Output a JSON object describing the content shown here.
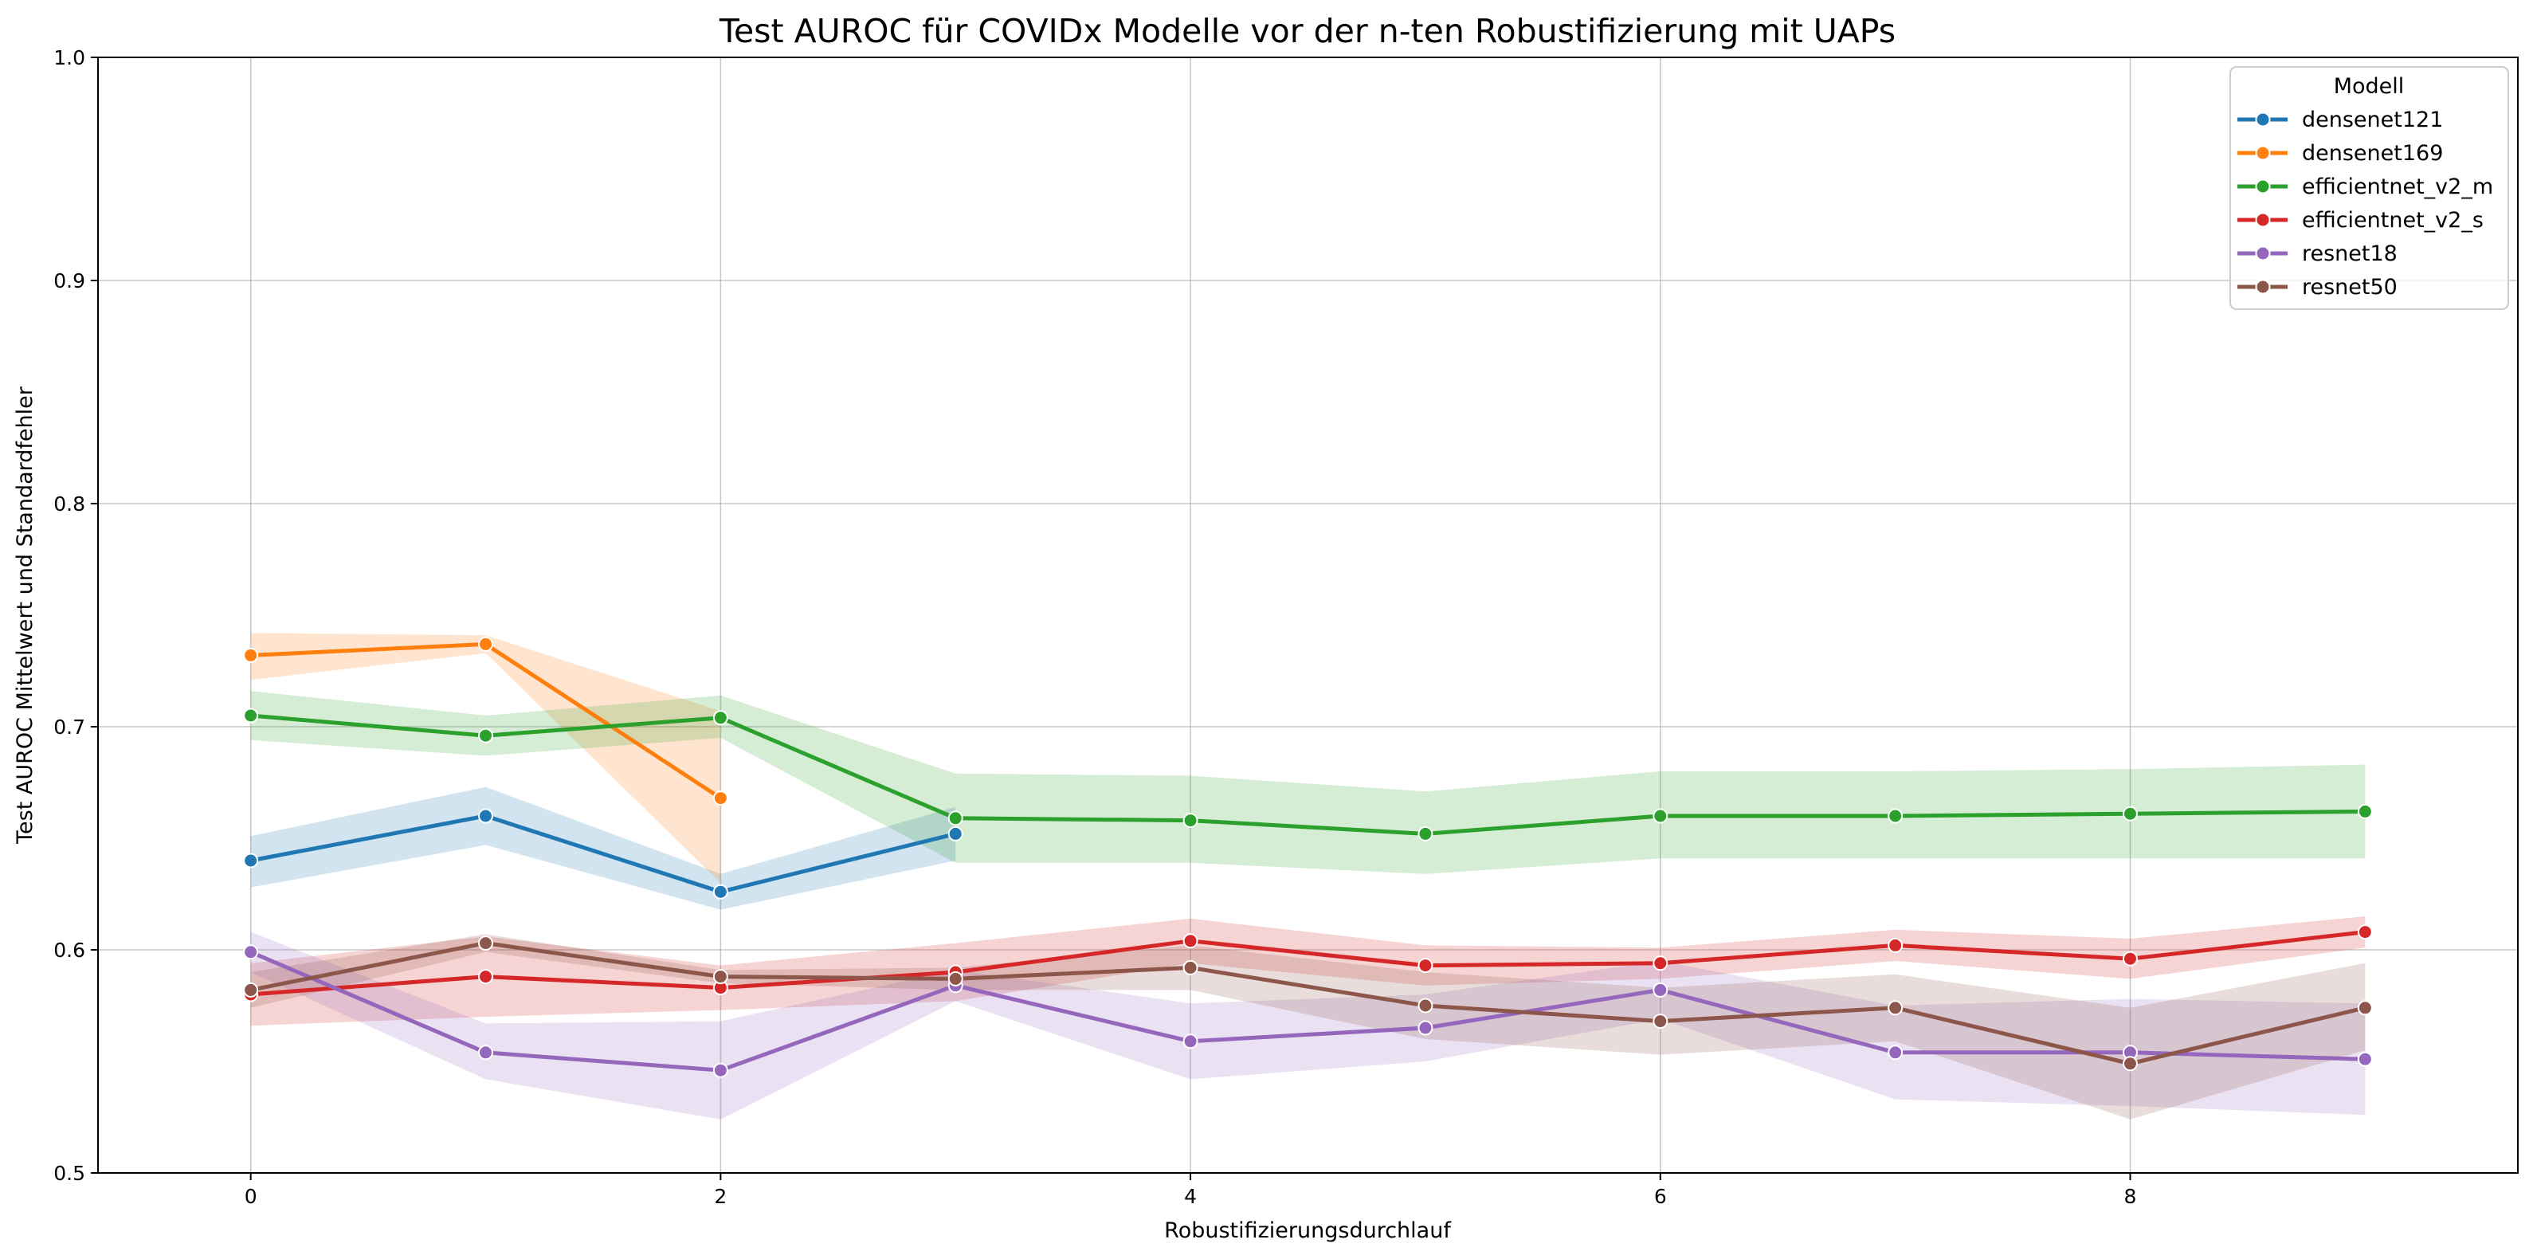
{
  "chart_data": {
    "type": "line",
    "title": "Test AUROC für COVIDx Modelle vor der n-ten Robustifizierung mit UAPs",
    "xlabel": "Robustifizierungsdurchlauf",
    "ylabel": "Test AUROC Mittelwert und Standardfehler",
    "xlim": [
      -0.65,
      9.65
    ],
    "ylim": [
      0.5,
      1.0
    ],
    "x_ticks": [
      0,
      2,
      4,
      6,
      8
    ],
    "x_tick_labels": [
      "0",
      "2",
      "4",
      "6",
      "8"
    ],
    "y_ticks": [
      0.5,
      0.6,
      0.7,
      0.8,
      0.9,
      1.0
    ],
    "y_tick_labels": [
      "0.5",
      "0.6",
      "0.7",
      "0.8",
      "0.9",
      "1.0"
    ],
    "grid": true,
    "legend": {
      "title": "Modell",
      "placement": "top-right"
    },
    "series": [
      {
        "name": "densenet121",
        "color": "#1f77b4",
        "x": [
          0,
          1,
          2,
          3
        ],
        "y": [
          0.64,
          0.66,
          0.626,
          0.652
        ],
        "lower": [
          0.628,
          0.647,
          0.618,
          0.64
        ],
        "upper": [
          0.651,
          0.673,
          0.634,
          0.664
        ]
      },
      {
        "name": "densenet169",
        "color": "#ff7f0e",
        "x": [
          0,
          1,
          2
        ],
        "y": [
          0.732,
          0.737,
          0.668
        ],
        "lower": [
          0.721,
          0.733,
          0.63
        ],
        "upper": [
          0.742,
          0.741,
          0.707
        ]
      },
      {
        "name": "efficientnet_v2_m",
        "color": "#2ca02c",
        "x": [
          0,
          1,
          2,
          3,
          4,
          5,
          6,
          7,
          8,
          9
        ],
        "y": [
          0.705,
          0.696,
          0.704,
          0.659,
          0.658,
          0.652,
          0.66,
          0.66,
          0.661,
          0.662
        ],
        "lower": [
          0.694,
          0.687,
          0.695,
          0.639,
          0.639,
          0.634,
          0.641,
          0.641,
          0.641,
          0.641
        ],
        "upper": [
          0.716,
          0.705,
          0.714,
          0.679,
          0.678,
          0.671,
          0.68,
          0.68,
          0.681,
          0.683
        ]
      },
      {
        "name": "efficientnet_v2_s",
        "color": "#d62728",
        "x": [
          0,
          1,
          2,
          3,
          4,
          5,
          6,
          7,
          8,
          9
        ],
        "y": [
          0.58,
          0.588,
          0.583,
          0.59,
          0.604,
          0.593,
          0.594,
          0.602,
          0.596,
          0.608
        ],
        "lower": [
          0.566,
          0.57,
          0.573,
          0.577,
          0.594,
          0.584,
          0.587,
          0.595,
          0.587,
          0.601
        ],
        "upper": [
          0.594,
          0.606,
          0.593,
          0.603,
          0.614,
          0.602,
          0.601,
          0.609,
          0.605,
          0.615
        ]
      },
      {
        "name": "resnet18",
        "color": "#9467bd",
        "x": [
          0,
          1,
          2,
          3,
          4,
          5,
          6,
          7,
          8,
          9
        ],
        "y": [
          0.599,
          0.554,
          0.546,
          0.584,
          0.559,
          0.565,
          0.582,
          0.554,
          0.554,
          0.551
        ],
        "lower": [
          0.59,
          0.542,
          0.524,
          0.577,
          0.542,
          0.55,
          0.569,
          0.533,
          0.53,
          0.526
        ],
        "upper": [
          0.608,
          0.567,
          0.568,
          0.591,
          0.576,
          0.58,
          0.595,
          0.575,
          0.578,
          0.576
        ]
      },
      {
        "name": "resnet50",
        "color": "#8c564b",
        "x": [
          0,
          1,
          2,
          3,
          4,
          5,
          6,
          7,
          8,
          9
        ],
        "y": [
          0.582,
          0.603,
          0.588,
          0.587,
          0.592,
          0.575,
          0.568,
          0.574,
          0.549,
          0.574
        ],
        "lower": [
          0.574,
          0.599,
          0.585,
          0.582,
          0.582,
          0.56,
          0.553,
          0.559,
          0.524,
          0.555
        ],
        "upper": [
          0.59,
          0.607,
          0.591,
          0.592,
          0.602,
          0.59,
          0.583,
          0.589,
          0.574,
          0.594
        ]
      }
    ]
  }
}
